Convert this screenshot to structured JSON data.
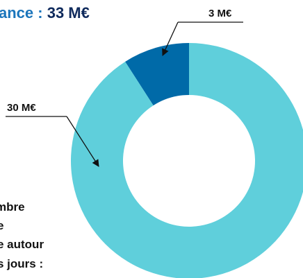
{
  "chart_data": {
    "type": "donut",
    "title": [
      "ance :",
      "33 M€"
    ],
    "values": [
      3,
      30
    ],
    "value_labels": [
      "3 M€",
      "30 M€"
    ],
    "colors": [
      "#006aa8",
      "#5fcfdb"
    ],
    "notes": [
      "mbre",
      "e",
      "e autour",
      "s jours :"
    ]
  }
}
